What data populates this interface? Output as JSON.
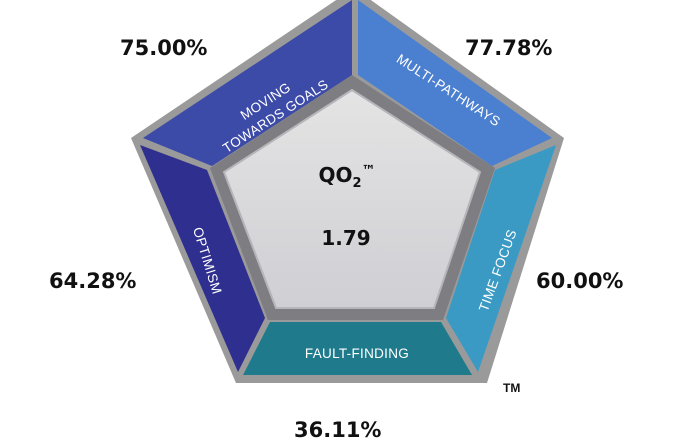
{
  "center": {
    "title": "QO",
    "title_sub": "2",
    "title_mark": "™",
    "score": "1.79"
  },
  "segments": {
    "moving_towards_goals": {
      "line1": "MOVING",
      "line2": "TOWARDS GOALS",
      "percent": "75.00%",
      "color": "#3c4aa8"
    },
    "multi_pathways": {
      "label": "MULTI-PATHWAYS",
      "percent": "77.78%",
      "color": "#4b7fd0"
    },
    "time_focus": {
      "label": "TIME FOCUS",
      "percent": "60.00%",
      "color": "#3a9ac4"
    },
    "fault_finding": {
      "label": "FAULT-FINDING",
      "percent": "36.11%",
      "color": "#1f7b8c"
    },
    "optimism": {
      "label": "OPTIMISM",
      "percent": "64.28%",
      "color": "#2e2f8f"
    }
  },
  "trademark": "TM"
}
